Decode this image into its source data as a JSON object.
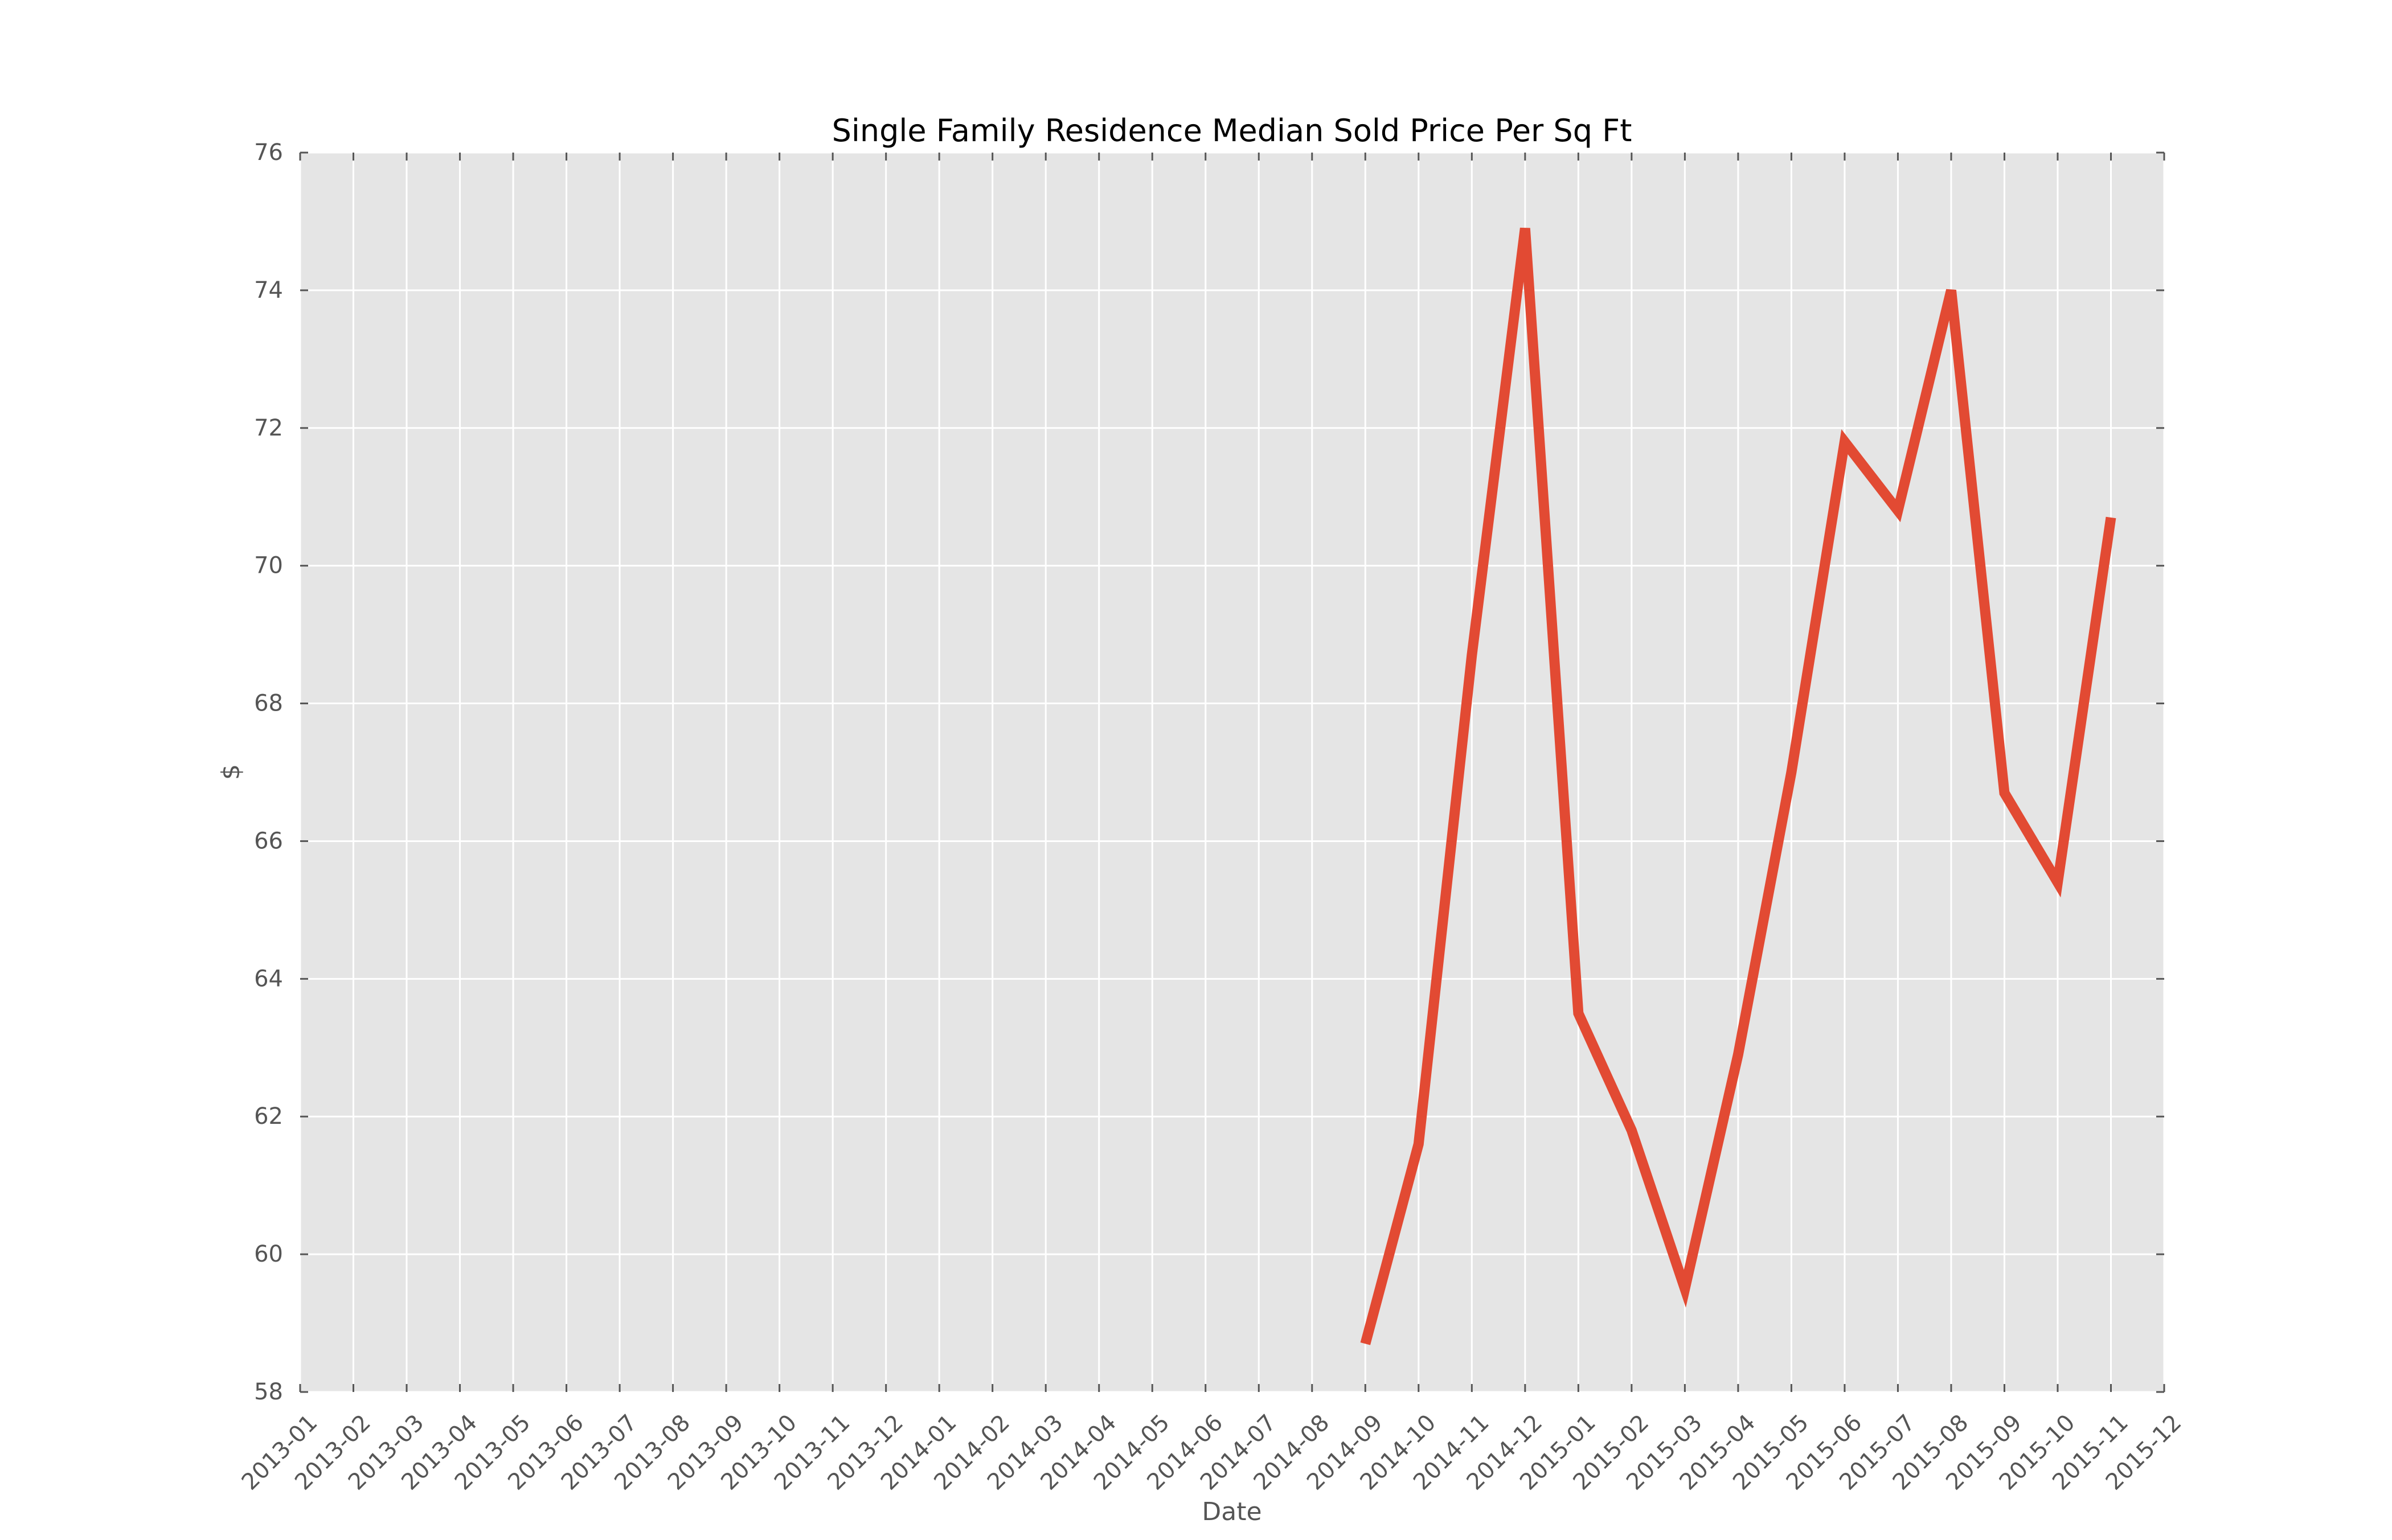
{
  "chart_data": {
    "type": "line",
    "title": "Single Family Residence Median Sold Price Per Sq Ft",
    "xlabel": "Date",
    "ylabel": "$",
    "x_ticks": [
      "2013-01",
      "2013-02",
      "2013-03",
      "2013-04",
      "2013-05",
      "2013-06",
      "2013-07",
      "2013-08",
      "2013-09",
      "2013-10",
      "2013-11",
      "2013-12",
      "2014-01",
      "2014-02",
      "2014-03",
      "2014-04",
      "2014-05",
      "2014-06",
      "2014-07",
      "2014-08",
      "2014-09",
      "2014-10",
      "2014-11",
      "2014-12",
      "2015-01",
      "2015-02",
      "2015-03",
      "2015-04",
      "2015-05",
      "2015-06",
      "2015-07",
      "2015-08",
      "2015-09",
      "2015-10",
      "2015-11",
      "2015-12"
    ],
    "y_ticks": [
      58,
      60,
      62,
      64,
      66,
      68,
      70,
      72,
      74,
      76
    ],
    "ylim": [
      58,
      76
    ],
    "grid": true,
    "series": [
      {
        "color": "#e24a33",
        "x": [
          "2014-09",
          "2014-10",
          "2014-11",
          "2014-12",
          "2015-01",
          "2015-02",
          "2015-03",
          "2015-04",
          "2015-05",
          "2015-06",
          "2015-07",
          "2015-08",
          "2015-09",
          "2015-10",
          "2015-11"
        ],
        "y": [
          58.7,
          61.6,
          68.7,
          74.9,
          63.5,
          61.8,
          59.5,
          62.9,
          67.0,
          71.8,
          70.8,
          74.0,
          66.7,
          65.4,
          70.7
        ]
      }
    ],
    "colors": {
      "plot_bg": "#e5e5e5",
      "grid": "#ffffff",
      "text": "#555555",
      "title": "#000000"
    }
  }
}
